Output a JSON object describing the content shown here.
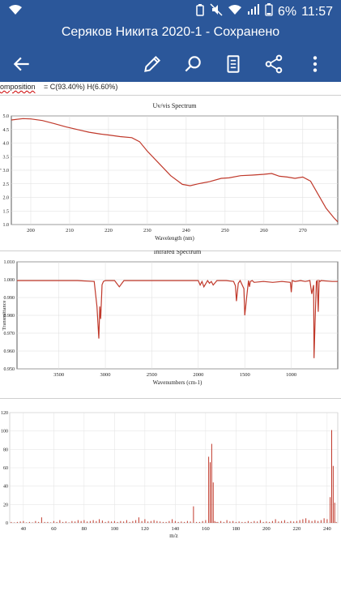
{
  "status_bar": {
    "left_icon": "wifi-icon",
    "battery_percent": "6%",
    "time": "11:57",
    "icons": [
      "sync-icon",
      "mute-icon",
      "wifi-icon",
      "signal-icon",
      "battery-icon"
    ]
  },
  "title_bar": {
    "title": "Серяков Никита 2020-1 - Сохранено"
  },
  "toolbar": {
    "icons": [
      "back-arrow-icon",
      "edit-pencil-icon",
      "search-icon",
      "mobile-view-icon",
      "share-icon",
      "more-vert-icon"
    ]
  },
  "colors": {
    "header": "#2b579a",
    "plot_line": "#c0392b"
  },
  "document": {
    "composition": {
      "label": "omposition",
      "value": "=   C(93.40%) H(6.60%)"
    }
  },
  "chart_data": [
    {
      "type": "line",
      "title": "Uv/vis Spectrum",
      "xlabel": "Wavelength (nm)",
      "ylabel": "Abs. epsilon",
      "xlim": [
        195,
        279
      ],
      "ylim": [
        1.0,
        5.0
      ],
      "x_ticks": [
        "200",
        "210",
        "220",
        "230",
        "240",
        "250",
        "260",
        "270"
      ],
      "y_ticks": [
        "1.0",
        "1.5",
        "2.0",
        "2.5",
        "3.0",
        "3.5",
        "4.0",
        "4.5",
        "5.0"
      ],
      "x": [
        195,
        198,
        200,
        203,
        206,
        209,
        212,
        215,
        218,
        220,
        223,
        226,
        228,
        230,
        233,
        236,
        239,
        241,
        243,
        246,
        249,
        251,
        254,
        257,
        260,
        262,
        264,
        266,
        268,
        270,
        272,
        274,
        276,
        278,
        279
      ],
      "y": [
        4.85,
        4.9,
        4.89,
        4.83,
        4.72,
        4.6,
        4.5,
        4.4,
        4.33,
        4.3,
        4.24,
        4.2,
        4.05,
        3.7,
        3.25,
        2.8,
        2.48,
        2.43,
        2.5,
        2.58,
        2.7,
        2.72,
        2.8,
        2.82,
        2.85,
        2.88,
        2.78,
        2.75,
        2.7,
        2.75,
        2.6,
        2.1,
        1.6,
        1.25,
        1.1
      ]
    },
    {
      "type": "line",
      "title": "Infrared Spectrum",
      "xlabel": "Wavenumbers (cm-1)",
      "ylabel": "Transmittance",
      "xlim": [
        3950,
        500
      ],
      "ylim": [
        0.95,
        1.01
      ],
      "x_ticks": [
        "3500",
        "3000",
        "2500",
        "2000",
        "1500",
        "1000"
      ],
      "y_ticks": [
        "0.950",
        "0.960",
        "0.970",
        "0.980",
        "0.990",
        "1.000",
        "1.010"
      ],
      "x": [
        3950,
        3300,
        3120,
        3090,
        3070,
        3060,
        3050,
        3035,
        3020,
        3000,
        2900,
        2850,
        2800,
        2000,
        1980,
        1960,
        1940,
        1900,
        1880,
        1860,
        1840,
        1800,
        1700,
        1620,
        1600,
        1590,
        1570,
        1550,
        1510,
        1500,
        1480,
        1460,
        1450,
        1440,
        1420,
        1400,
        1300,
        1200,
        1100,
        1010,
        1000,
        990,
        960,
        900,
        850,
        800,
        780,
        760,
        755,
        745,
        730,
        720,
        710,
        700,
        690,
        680,
        560,
        500
      ],
      "y": [
        0.9995,
        0.9995,
        0.999,
        0.985,
        0.967,
        0.985,
        0.978,
        0.9972,
        0.999,
        0.9995,
        0.9995,
        0.996,
        0.9995,
        0.9995,
        0.997,
        0.999,
        0.996,
        0.9995,
        0.998,
        0.999,
        0.997,
        0.9995,
        0.9995,
        0.999,
        0.9965,
        0.988,
        0.998,
        0.9995,
        0.995,
        0.98,
        0.99,
        0.9995,
        0.996,
        0.999,
        0.9995,
        0.9985,
        0.999,
        0.9985,
        0.999,
        0.9985,
        0.993,
        0.9995,
        0.999,
        0.9995,
        0.999,
        0.9995,
        0.992,
        0.997,
        0.956,
        0.975,
        0.999,
        0.9995,
        0.982,
        0.9995,
        0.999,
        0.9995,
        0.999,
        0.999
      ]
    },
    {
      "type": "bar",
      "title": "",
      "xlabel": "m/z",
      "ylabel": "",
      "xlim": [
        31,
        247
      ],
      "ylim": [
        0,
        120
      ],
      "x_ticks": [
        "40",
        "60",
        "80",
        "100",
        "120",
        "140",
        "160",
        "180",
        "200",
        "220",
        "240"
      ],
      "y_ticks": [
        "0",
        "20",
        "40",
        "60",
        "80",
        "100",
        "120"
      ],
      "x": [
        32,
        34,
        36,
        38,
        40,
        42,
        44,
        46,
        48,
        50,
        52,
        54,
        56,
        58,
        60,
        62,
        64,
        66,
        68,
        70,
        72,
        74,
        76,
        78,
        80,
        82,
        84,
        86,
        88,
        90,
        92,
        94,
        96,
        98,
        100,
        102,
        104,
        106,
        108,
        110,
        112,
        114,
        116,
        118,
        120,
        122,
        124,
        126,
        128,
        130,
        132,
        134,
        136,
        138,
        140,
        142,
        144,
        146,
        148,
        150,
        152,
        154,
        156,
        158,
        160,
        162,
        163,
        164,
        165,
        166,
        167,
        168,
        170,
        172,
        174,
        176,
        178,
        180,
        182,
        184,
        186,
        188,
        190,
        192,
        194,
        196,
        198,
        200,
        202,
        204,
        206,
        208,
        210,
        212,
        214,
        216,
        218,
        220,
        222,
        224,
        226,
        228,
        230,
        232,
        234,
        236,
        238,
        240,
        242,
        243,
        244,
        245,
        246
      ],
      "values": [
        1,
        0.5,
        1,
        1.5,
        2,
        0.5,
        1,
        0.5,
        2,
        1,
        6,
        1,
        1,
        0.5,
        2,
        1,
        3,
        1,
        1.5,
        0.5,
        2,
        1.5,
        3,
        2,
        3,
        1.5,
        2,
        3,
        2,
        4,
        2.5,
        1,
        2,
        1.5,
        2,
        1,
        2,
        1.5,
        3,
        1,
        2,
        3,
        6,
        2,
        4,
        1.5,
        2,
        3,
        2,
        1.5,
        1,
        1,
        2,
        4,
        2,
        1,
        1.5,
        1,
        2,
        1.5,
        18,
        1,
        1,
        2,
        3,
        72,
        66,
        86,
        44,
        2,
        1,
        1,
        2,
        1,
        3,
        1.5,
        2,
        1,
        1.5,
        1,
        1,
        2,
        1,
        2,
        1.5,
        3,
        1,
        1.5,
        1,
        2,
        4,
        1.5,
        2,
        3,
        1,
        2,
        1.5,
        2,
        3,
        4,
        5,
        3,
        2,
        3,
        2,
        3,
        5,
        4,
        28,
        101,
        62,
        22,
        1
      ]
    }
  ]
}
